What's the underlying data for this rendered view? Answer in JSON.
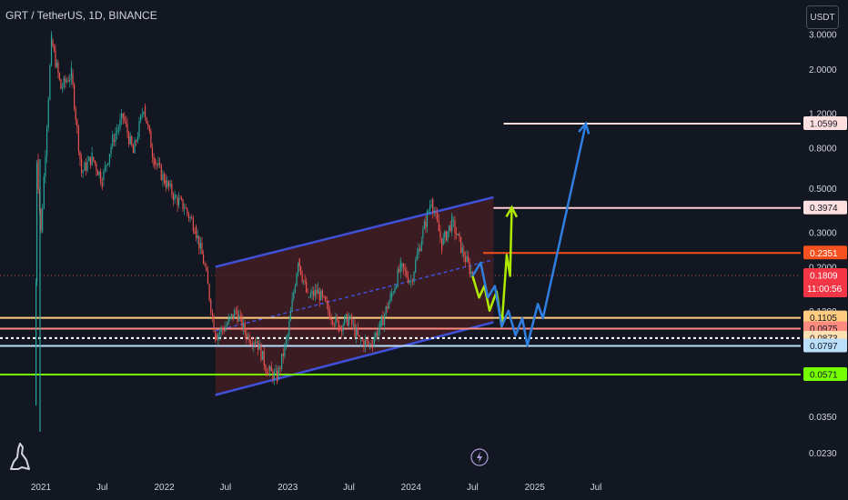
{
  "header": {
    "symbol_title": "GRT / TetherUS, 1D, BINANCE",
    "currency_label": "USDT"
  },
  "icons": {
    "logo": "tradingview-dino-icon",
    "alert": "lightning-bolt-icon"
  },
  "colors": {
    "background": "#131722",
    "candle_up": "#26a69a",
    "candle_down": "#ef5350",
    "channel_fill": "#4a1f24",
    "channel_line": "#3f51d8",
    "current_price_line": "#ef5350",
    "projection_green": "#aeea00",
    "projection_blue": "#2f7fe0",
    "text": "#d1d4dc"
  },
  "chart_data": {
    "type": "candlestick",
    "title": "GRT / TetherUS, 1D, BINANCE",
    "x_ticks": [
      "2021",
      "Jul",
      "2022",
      "Jul",
      "2023",
      "Jul",
      "2024",
      "Jul",
      "2025",
      "Jul"
    ],
    "y_ticks": [
      "3.0000",
      "2.0000",
      "1.2000",
      "0.8000",
      "0.5000",
      "0.3000",
      "0.2000",
      "0.1200",
      "0.0350",
      "0.0230"
    ],
    "y_scale": "log",
    "price_labels": [
      {
        "value": "1.0599",
        "bg": "#ffe0e0",
        "fg": "#131722"
      },
      {
        "value": "0.3974",
        "bg": "#ffe0e0",
        "fg": "#131722"
      },
      {
        "value": "0.2351",
        "bg": "#f4511e",
        "fg": "#ffffff"
      },
      {
        "value": "0.1809",
        "bg": "#f23645",
        "fg": "#ffffff",
        "countdown": "11:00:56"
      },
      {
        "value": "0.1105",
        "bg": "#ffcc80",
        "fg": "#131722"
      },
      {
        "value": "0.0975",
        "bg": "#ff8a80",
        "fg": "#131722"
      },
      {
        "value": "0.0873",
        "bg": "#ffe0b2",
        "fg": "#131722"
      },
      {
        "value": "0.0797",
        "bg": "#bbdefb",
        "fg": "#131722"
      },
      {
        "value": "0.0571",
        "bg": "#76ff03",
        "fg": "#131722"
      }
    ],
    "horizontal_levels": [
      {
        "price": 1.0599,
        "color": "#ffe0e0",
        "from": "2024-10"
      },
      {
        "price": 0.3974,
        "color": "#ffcdd2",
        "from": "2024-09"
      },
      {
        "price": 0.2351,
        "color": "#f4511e",
        "from": "2024-08"
      },
      {
        "price": 0.1105,
        "color": "#ffcc80",
        "from": "2020-12"
      },
      {
        "price": 0.0975,
        "color": "#ff8a80",
        "from": "2020-12"
      },
      {
        "price": 0.0873,
        "color": "#ffffff",
        "from": "2020-12",
        "style": "dashed"
      },
      {
        "price": 0.0797,
        "color": "#bbdefb",
        "from": "2020-12"
      },
      {
        "price": 0.0571,
        "color": "#76ff03",
        "from": "2020-12"
      }
    ],
    "current_price": 0.1809,
    "countdown": "11:00:56",
    "price_path": [
      [
        "2020-12",
        0.04
      ],
      [
        "2020-12-20",
        0.7
      ],
      [
        "2021-01",
        0.3
      ],
      [
        "2021-02",
        2.8
      ],
      [
        "2021-03",
        1.6
      ],
      [
        "2021-04",
        1.9
      ],
      [
        "2021-05",
        0.6
      ],
      [
        "2021-06",
        0.72
      ],
      [
        "2021-07",
        0.55
      ],
      [
        "2021-08",
        0.88
      ],
      [
        "2021-09",
        1.15
      ],
      [
        "2021-10",
        0.75
      ],
      [
        "2021-11",
        1.3
      ],
      [
        "2021-12",
        0.7
      ],
      [
        "2022-01",
        0.55
      ],
      [
        "2022-02",
        0.45
      ],
      [
        "2022-03",
        0.4
      ],
      [
        "2022-04",
        0.32
      ],
      [
        "2022-05",
        0.2
      ],
      [
        "2022-06",
        0.09
      ],
      [
        "2022-07",
        0.1
      ],
      [
        "2022-08",
        0.12
      ],
      [
        "2022-09",
        0.09
      ],
      [
        "2022-10",
        0.085
      ],
      [
        "2022-11",
        0.06
      ],
      [
        "2022-12",
        0.055
      ],
      [
        "2023-01",
        0.09
      ],
      [
        "2023-02",
        0.22
      ],
      [
        "2023-03",
        0.14
      ],
      [
        "2023-04",
        0.15
      ],
      [
        "2023-05",
        0.12
      ],
      [
        "2023-06",
        0.1
      ],
      [
        "2023-07",
        0.11
      ],
      [
        "2023-08",
        0.085
      ],
      [
        "2023-09",
        0.081
      ],
      [
        "2023-10",
        0.1
      ],
      [
        "2023-11",
        0.14
      ],
      [
        "2023-12",
        0.2
      ],
      [
        "2024-01",
        0.17
      ],
      [
        "2024-02",
        0.28
      ],
      [
        "2024-03",
        0.44
      ],
      [
        "2024-04",
        0.26
      ],
      [
        "2024-05",
        0.34
      ],
      [
        "2024-06",
        0.24
      ],
      [
        "2024-07",
        0.18
      ]
    ],
    "channel": {
      "upper": [
        [
          "2022-06",
          0.2
        ],
        [
          "2024-09",
          0.45
        ]
      ],
      "lower": [
        [
          "2022-06",
          0.045
        ],
        [
          "2024-09",
          0.105
        ]
      ]
    },
    "projections": [
      {
        "name": "green",
        "points": [
          [
            "2024-07",
            0.18
          ],
          [
            "2024-07-20",
            0.14
          ],
          [
            "2024-08-05",
            0.16
          ],
          [
            "2024-08-20",
            0.12
          ],
          [
            "2024-09-10",
            0.15
          ],
          [
            "2024-09-25",
            0.1
          ],
          [
            "2024-10-10",
            0.23
          ],
          [
            "2024-10-20",
            0.18
          ],
          [
            "2024-10-25",
            0.4
          ]
        ]
      },
      {
        "name": "blue",
        "points": [
          [
            "2024-07",
            0.18
          ],
          [
            "2024-07-25",
            0.21
          ],
          [
            "2024-08-15",
            0.14
          ],
          [
            "2024-09-05",
            0.16
          ],
          [
            "2024-09-25",
            0.1
          ],
          [
            "2024-10-15",
            0.12
          ],
          [
            "2024-11-05",
            0.09
          ],
          [
            "2024-11-25",
            0.11
          ],
          [
            "2024-12-10",
            0.08
          ],
          [
            "2025-01-10",
            0.13
          ],
          [
            "2025-01-25",
            0.11
          ],
          [
            "2025-06",
            1.06
          ]
        ]
      }
    ]
  }
}
